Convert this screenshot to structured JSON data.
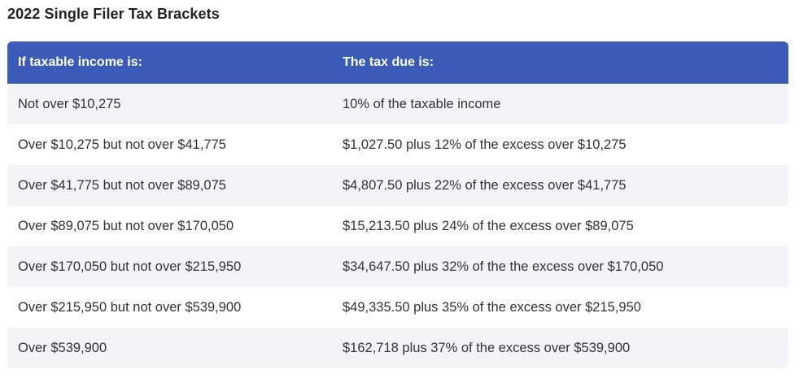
{
  "title": "2022 Single Filer Tax Brackets",
  "table": {
    "headers": [
      "If taxable income is:",
      "The tax due is:"
    ],
    "rows": [
      [
        "Not over $10,275",
        "10% of the taxable income"
      ],
      [
        "Over $10,275 but not over $41,775",
        "$1,027.50 plus 12% of the excess over $10,275"
      ],
      [
        "Over $41,775 but not over $89,075",
        "$4,807.50 plus 22% of the excess over $41,775"
      ],
      [
        "Over $89,075 but not over $170,050",
        "$15,213.50 plus 24% of the excess over $89,075"
      ],
      [
        "Over $170,050 but not over $215,950",
        "$34,647.50 plus 32% of the the excess over $170,050"
      ],
      [
        "Over $215,950 but not over $539,900",
        "$49,335.50 plus 35% of the excess over $215,950"
      ],
      [
        "Over $539,900",
        "$162,718 plus 37% of the excess over $539,900"
      ]
    ]
  },
  "colors": {
    "header_bg": "#3a5cb8",
    "header_text": "#ffffff",
    "stripe": "#f3f4f8"
  }
}
